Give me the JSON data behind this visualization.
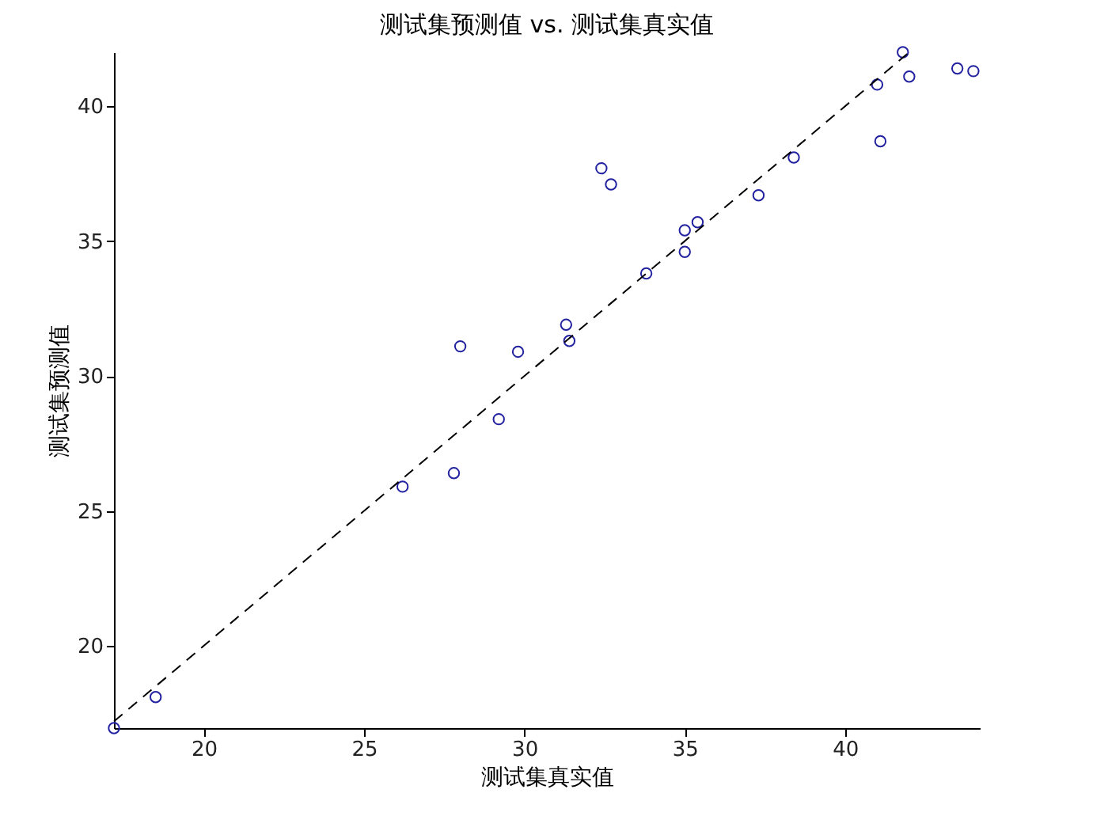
{
  "chart_data": {
    "type": "scatter",
    "title": "测试集预测值 vs. 测试集真实值",
    "xlabel": "测试集真实值",
    "ylabel": "测试集预测值",
    "xlim": [
      17.2,
      44.2
    ],
    "ylim": [
      16.95,
      42.0
    ],
    "xticks": [
      20,
      25,
      30,
      35,
      40
    ],
    "yticks": [
      20,
      25,
      30,
      35,
      40
    ],
    "grid": false,
    "series": [
      {
        "marker": "circle",
        "color": "#2222a0",
        "x": [
          17.2,
          18.5,
          26.2,
          27.8,
          28.0,
          29.2,
          29.8,
          31.3,
          31.4,
          32.4,
          32.7,
          33.8,
          35.0,
          35.0,
          35.4,
          37.3,
          38.4,
          41.0,
          41.1,
          41.8,
          42.0,
          43.5,
          44.0
        ],
        "values": [
          16.95,
          18.1,
          25.9,
          26.4,
          31.1,
          28.4,
          30.9,
          31.9,
          31.3,
          37.7,
          37.1,
          33.8,
          34.6,
          35.4,
          35.7,
          36.7,
          38.1,
          40.8,
          38.7,
          42.0,
          41.1,
          41.4,
          41.3
        ]
      },
      {
        "type": "line",
        "line_style": "dashed",
        "marker": "none",
        "color": "#000000",
        "x": [
          17.2,
          42.0
        ],
        "values": [
          17.2,
          42.0
        ]
      }
    ]
  }
}
